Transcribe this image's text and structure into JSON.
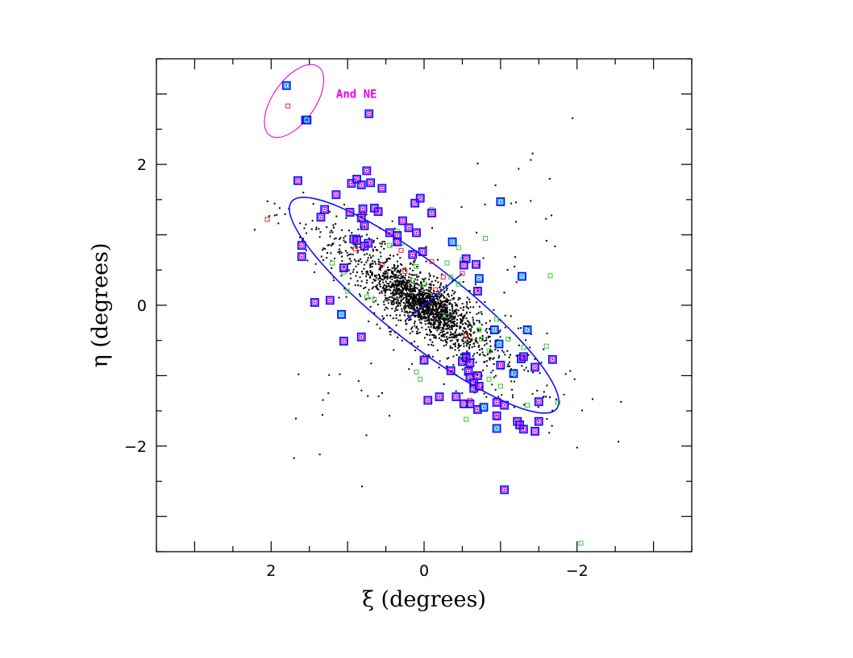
{
  "chart_data": {
    "type": "scatter",
    "xlabel": "ξ (degrees)",
    "ylabel": "η (degrees)",
    "xlim": [
      3.5,
      -3.5
    ],
    "ylim": [
      -3.5,
      3.5
    ],
    "x_ticks": [
      2,
      0,
      -2
    ],
    "y_ticks": [
      2,
      0,
      -2
    ],
    "grid": false,
    "colors": {
      "points": "#000000",
      "ellipse": "#1010ff",
      "green": "#33cc33",
      "red": "#ee2222",
      "big_outer": "#1010ff",
      "big_inner": "#ee00ee",
      "cyan_inner": "#00ccee",
      "annotation": "#ee00ee"
    },
    "annotation": {
      "text": "And NE",
      "x": 1.15,
      "y": 3.0
    },
    "ne_ellipse": {
      "cx": 1.7,
      "cy": 2.9,
      "a": 0.55,
      "b": 0.3,
      "angle_deg": -55
    },
    "main_ellipse": {
      "cx": 0.0,
      "cy": 0.0,
      "a": 2.2,
      "b": 0.55,
      "angle_deg": 38
    },
    "axis_segments": [
      {
        "x1": 0.0,
        "y1": 0.0,
        "x2": -0.5,
        "y2": 0.45
      },
      {
        "x1": 0.0,
        "y1": 0.0,
        "x2": 0.25,
        "y2": -0.22
      }
    ],
    "big_squares_purple": [
      [
        1.65,
        1.77
      ],
      [
        1.3,
        1.36
      ],
      [
        1.35,
        1.25
      ],
      [
        1.15,
        1.57
      ],
      [
        0.97,
        1.32
      ],
      [
        0.95,
        1.73
      ],
      [
        0.88,
        1.79
      ],
      [
        0.82,
        1.71
      ],
      [
        0.75,
        1.91
      ],
      [
        0.7,
        1.74
      ],
      [
        0.55,
        1.66
      ],
      [
        0.65,
        1.38
      ],
      [
        0.6,
        1.33
      ],
      [
        0.8,
        1.37
      ],
      [
        0.82,
        1.24
      ],
      [
        0.78,
        1.13
      ],
      [
        0.92,
        0.94
      ],
      [
        0.88,
        0.92
      ],
      [
        0.73,
        0.88
      ],
      [
        0.78,
        0.84
      ],
      [
        1.6,
        0.85
      ],
      [
        1.6,
        0.69
      ],
      [
        1.43,
        0.04
      ],
      [
        1.23,
        0.07
      ],
      [
        1.05,
        0.53
      ],
      [
        0.82,
        -0.45
      ],
      [
        1.05,
        -0.51
      ],
      [
        0.45,
        1.03
      ],
      [
        0.35,
        0.99
      ],
      [
        0.28,
        1.2
      ],
      [
        0.2,
        1.1
      ],
      [
        0.12,
        1.45
      ],
      [
        0.05,
        1.52
      ],
      [
        0.1,
        1.03
      ],
      [
        -0.1,
        1.31
      ],
      [
        0.15,
        0.72
      ],
      [
        0.02,
        0.76
      ],
      [
        0.35,
        0.9
      ],
      [
        0.72,
        2.72
      ],
      [
        1.55,
        2.63
      ],
      [
        0.0,
        -0.78
      ],
      [
        -0.35,
        -0.93
      ],
      [
        -0.5,
        -0.8
      ],
      [
        -0.55,
        -0.73
      ],
      [
        -0.58,
        -0.94
      ],
      [
        -0.6,
        -1.02
      ],
      [
        -0.65,
        -1.1
      ],
      [
        -0.7,
        -1.0
      ],
      [
        -0.65,
        -1.18
      ],
      [
        -0.72,
        -1.15
      ],
      [
        -0.95,
        -1.38
      ],
      [
        -1.05,
        -1.42
      ],
      [
        -1.0,
        -0.85
      ],
      [
        -0.95,
        -1.57
      ],
      [
        -0.6,
        -1.4
      ],
      [
        -0.42,
        -1.3
      ],
      [
        -0.52,
        -1.4
      ],
      [
        -0.7,
        -1.48
      ],
      [
        -0.2,
        -1.3
      ],
      [
        -0.05,
        -1.35
      ],
      [
        -1.05,
        -2.62
      ],
      [
        -1.22,
        -1.65
      ],
      [
        -1.25,
        -1.7
      ],
      [
        -1.3,
        -1.76
      ],
      [
        -1.45,
        -1.79
      ],
      [
        -1.5,
        -1.37
      ],
      [
        -1.5,
        -1.65
      ],
      [
        -1.45,
        -0.88
      ],
      [
        -1.27,
        -0.76
      ],
      [
        -1.3,
        -0.73
      ],
      [
        -1.68,
        -0.77
      ],
      [
        -0.68,
        0.58
      ],
      [
        -0.7,
        0.2
      ],
      [
        -0.55,
        0.66
      ],
      [
        -0.52,
        0.57
      ],
      [
        -0.55,
        -0.75
      ],
      [
        -0.6,
        -0.82
      ]
    ],
    "big_squares_cyan": [
      [
        1.8,
        3.12
      ],
      [
        1.53,
        2.63
      ],
      [
        1.08,
        -0.13
      ],
      [
        -0.37,
        0.9
      ],
      [
        -1.0,
        1.47
      ],
      [
        -1.28,
        0.41
      ],
      [
        -0.92,
        -0.35
      ],
      [
        -0.98,
        -0.55
      ],
      [
        -1.35,
        -0.35
      ],
      [
        -1.17,
        -0.97
      ],
      [
        -0.95,
        -1.75
      ],
      [
        -0.72,
        0.38
      ],
      [
        -0.78,
        -1.45
      ]
    ],
    "red_squares": [
      [
        2.05,
        1.22
      ],
      [
        1.78,
        2.83
      ],
      [
        0.8,
        1.3
      ],
      [
        0.9,
        0.8
      ],
      [
        0.55,
        0.58
      ],
      [
        0.25,
        0.48
      ],
      [
        -0.1,
        0.62
      ],
      [
        -0.25,
        0.4
      ],
      [
        -0.6,
        -1.35
      ],
      [
        -0.95,
        -1.6
      ],
      [
        -0.55,
        -0.42
      ],
      [
        -0.5,
        0.45
      ],
      [
        0.3,
        0.78
      ],
      [
        -0.15,
        0.22
      ]
    ],
    "green_squares": [
      [
        -0.8,
        0.95
      ],
      [
        -0.1,
        1.36
      ],
      [
        0.35,
        1.05
      ],
      [
        0.3,
        0.88
      ],
      [
        0.45,
        0.85
      ],
      [
        0.1,
        0.55
      ],
      [
        0.0,
        0.3
      ],
      [
        1.2,
        0.6
      ],
      [
        1.05,
        0.47
      ],
      [
        1.0,
        0.2
      ],
      [
        0.75,
        0.12
      ],
      [
        0.65,
        0.08
      ],
      [
        -0.45,
        0.82
      ],
      [
        -0.5,
        0.65
      ],
      [
        -0.3,
        0.6
      ],
      [
        -0.35,
        0.4
      ],
      [
        -0.48,
        -0.75
      ],
      [
        -0.72,
        -0.35
      ],
      [
        -0.75,
        -0.48
      ],
      [
        -0.85,
        -1.05
      ],
      [
        -1.0,
        -1.15
      ],
      [
        -1.35,
        -1.42
      ],
      [
        -1.3,
        -0.6
      ],
      [
        -1.6,
        -0.58
      ],
      [
        -1.75,
        -1.38
      ],
      [
        -1.65,
        0.42
      ],
      [
        -0.95,
        -0.2
      ],
      [
        -0.55,
        -1.62
      ],
      [
        0.05,
        -1.05
      ],
      [
        0.1,
        -0.95
      ],
      [
        -0.45,
        0.3
      ],
      [
        -0.3,
        -0.15
      ],
      [
        0.15,
        0.35
      ],
      [
        -2.05,
        -3.38
      ],
      [
        -1.1,
        -0.48
      ],
      [
        -0.85,
        -0.65
      ]
    ],
    "tilted_squares": [
      [
        1.58,
        2.62
      ],
      [
        1.82,
        3.12
      ]
    ]
  }
}
